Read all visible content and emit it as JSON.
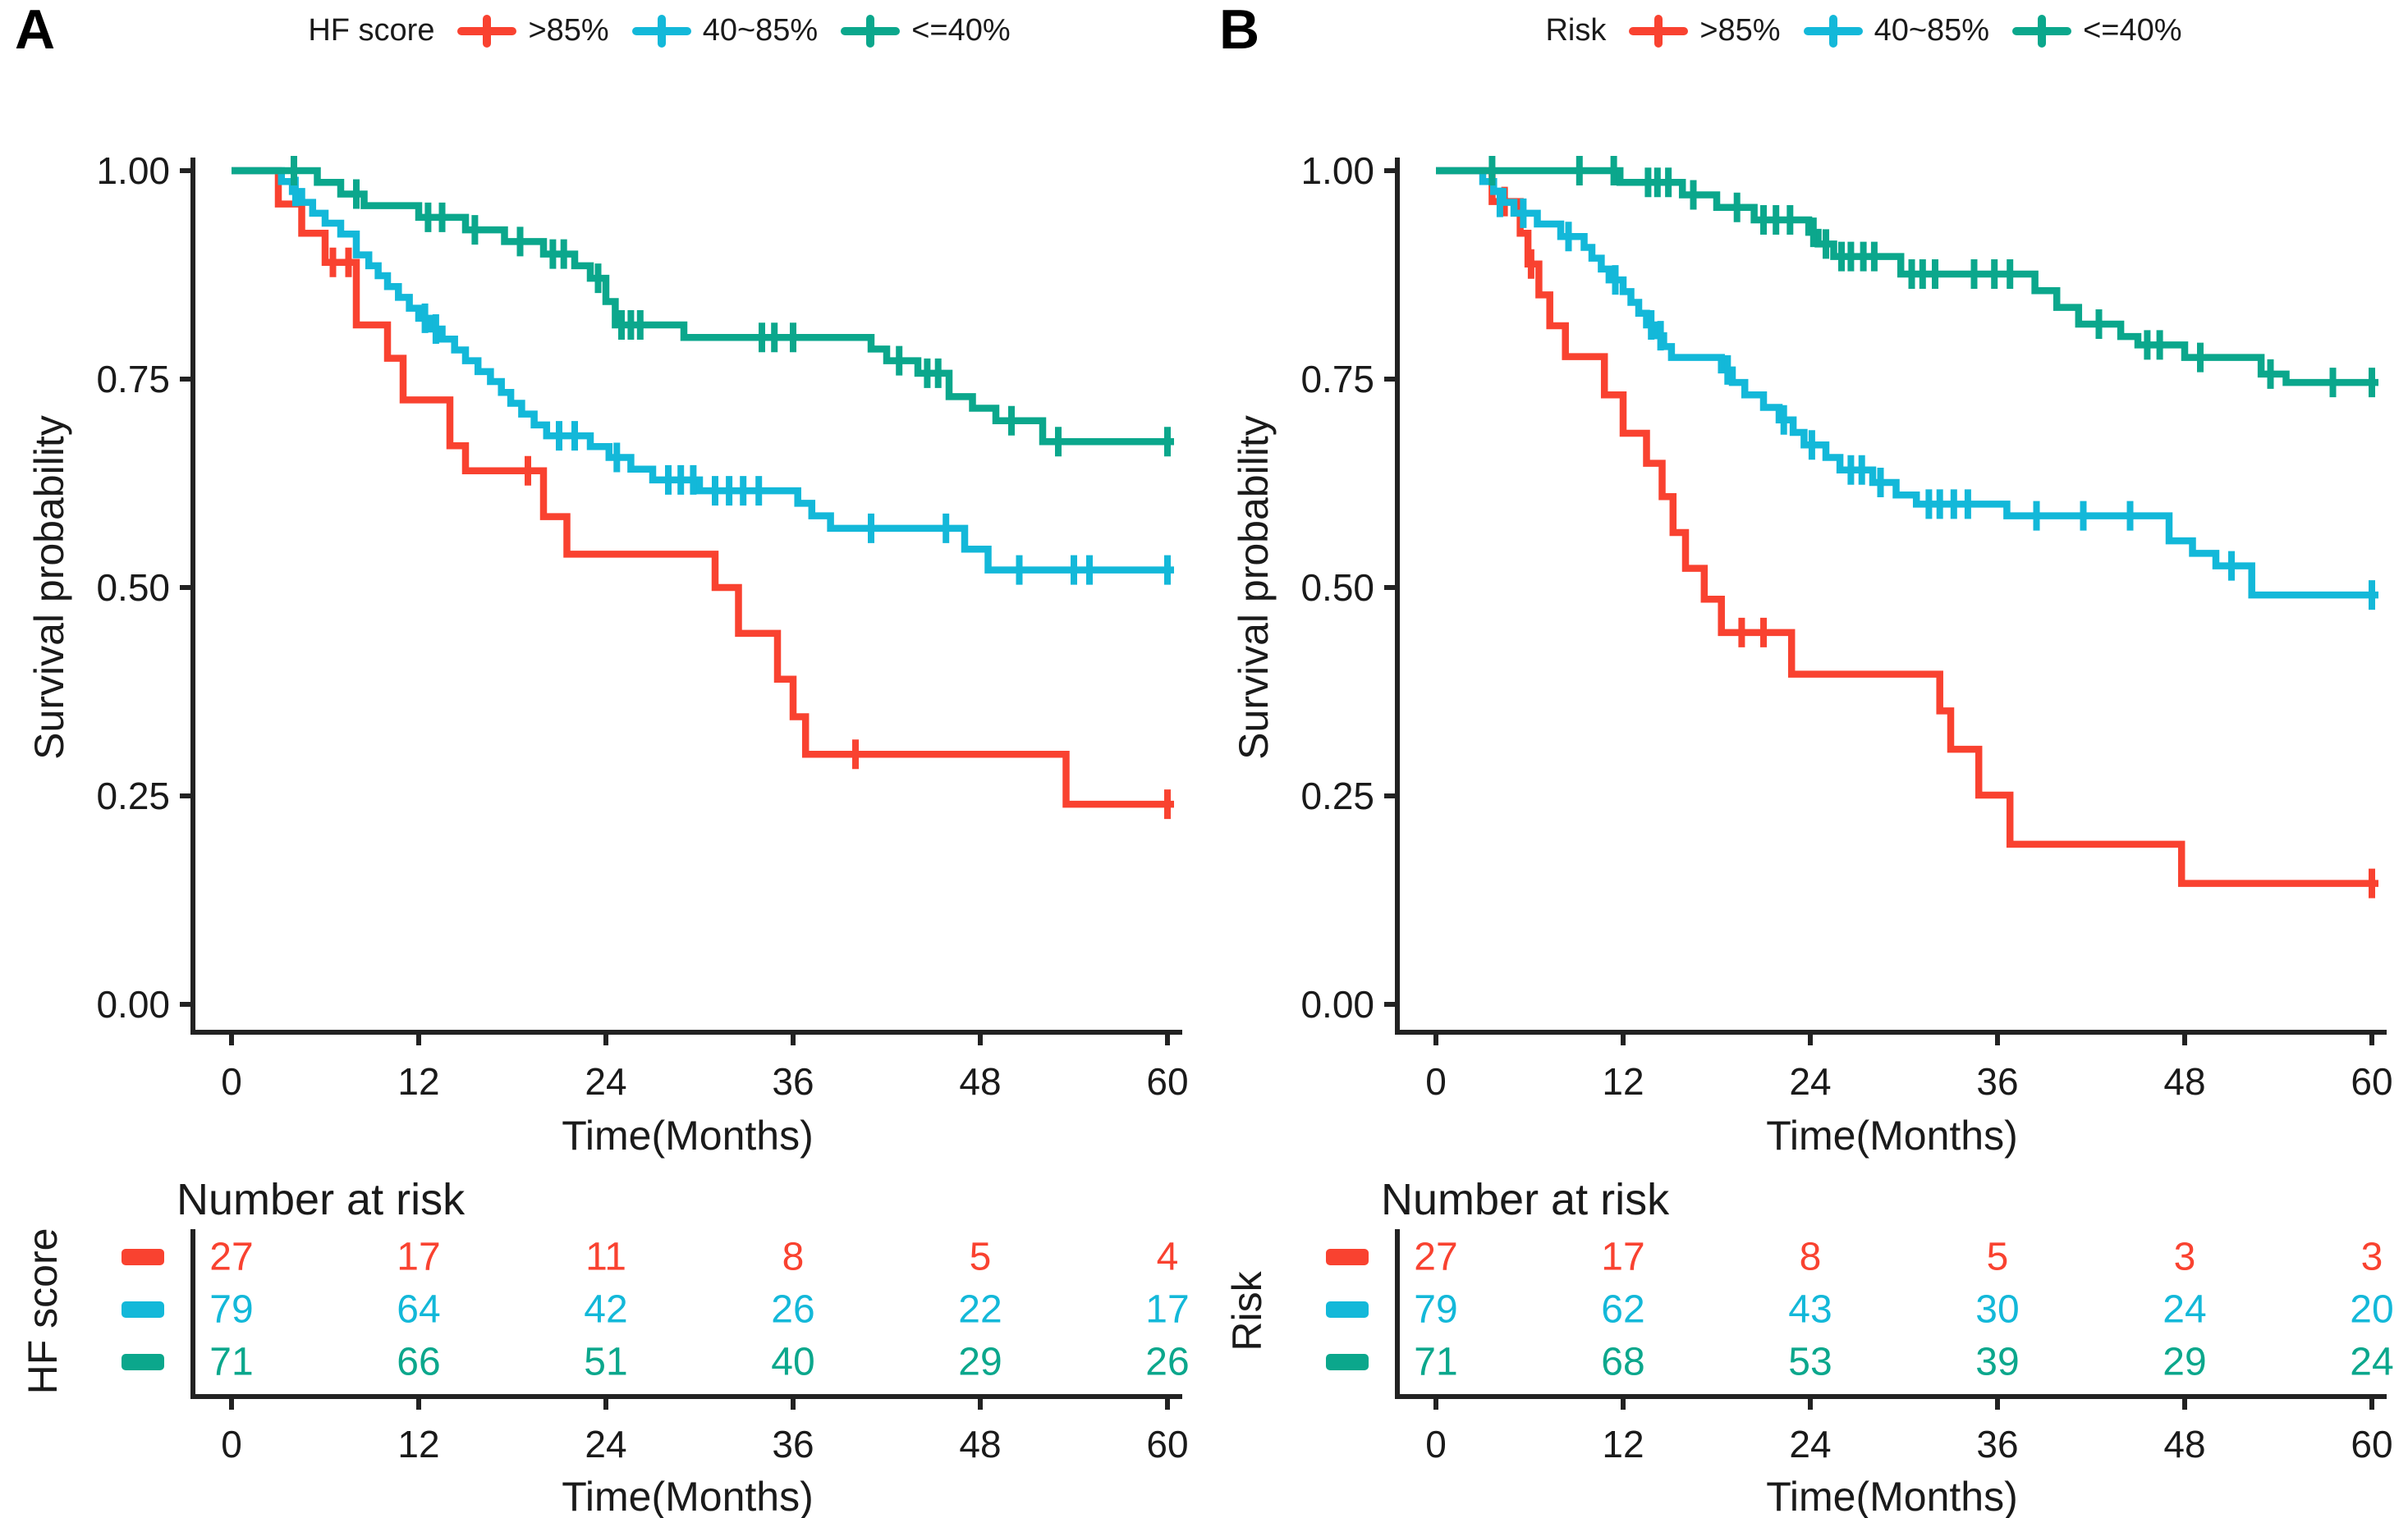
{
  "chart_data": [
    {
      "type": "line",
      "subtype": "kaplan-meier-step",
      "panel_letter": "A",
      "legend_title": "HF score",
      "xlabel": "Time(Months)",
      "ylabel": "Survival probability",
      "xlim": [
        0,
        60
      ],
      "ylim": [
        0,
        1
      ],
      "x_ticks": [
        0,
        12,
        24,
        36,
        48,
        60
      ],
      "y_tick_values": [
        1,
        0.75,
        0.5,
        0.25,
        0
      ],
      "y_tick_labels": [
        "1.00",
        "0.75",
        "0.50",
        "0.25",
        "0.00"
      ],
      "grid": false,
      "legend_position": "top",
      "risk_table": {
        "title": "Number at risk",
        "group_label": "HF score",
        "xlabel": "Time(Months)",
        "x_ticks": [
          0,
          12,
          24,
          36,
          48,
          60
        ]
      },
      "series": [
        {
          "name": ">85%",
          "color": "#f94230",
          "at_risk": [
            27,
            17,
            11,
            8,
            5,
            4
          ],
          "steps": [
            [
              3,
              0.96
            ],
            [
              4.5,
              0.925
            ],
            [
              6,
              0.89
            ],
            [
              8,
              0.815
            ],
            [
              10,
              0.775
            ],
            [
              11,
              0.725
            ],
            [
              14,
              0.67
            ],
            [
              15,
              0.64
            ],
            [
              20,
              0.585
            ],
            [
              21.5,
              0.54
            ],
            [
              31,
              0.5
            ],
            [
              32.5,
              0.445
            ],
            [
              35,
              0.39
            ],
            [
              36,
              0.345
            ],
            [
              36.8,
              0.3
            ],
            [
              53.5,
              0.24
            ]
          ],
          "censors": [
            [
              6.5,
              0.89
            ],
            [
              7.5,
              0.89
            ],
            [
              19,
              0.64
            ],
            [
              40,
              0.3
            ],
            [
              60,
              0.24
            ]
          ]
        },
        {
          "name": "40~85%",
          "color": "#13b8d9",
          "at_risk": [
            79,
            64,
            42,
            26,
            22,
            17
          ],
          "steps": [
            [
              3.2,
              0.987
            ],
            [
              3.9,
              0.975
            ],
            [
              4.5,
              0.962
            ],
            [
              5.2,
              0.949
            ],
            [
              6,
              0.937
            ],
            [
              7,
              0.924
            ],
            [
              8,
              0.899
            ],
            [
              8.8,
              0.886
            ],
            [
              9.4,
              0.874
            ],
            [
              10,
              0.861
            ],
            [
              10.7,
              0.848
            ],
            [
              11.4,
              0.835
            ],
            [
              12,
              0.823
            ],
            [
              12.7,
              0.81
            ],
            [
              13.5,
              0.798
            ],
            [
              14.3,
              0.785
            ],
            [
              15,
              0.772
            ],
            [
              15.8,
              0.759
            ],
            [
              16.6,
              0.747
            ],
            [
              17.3,
              0.734
            ],
            [
              17.9,
              0.721
            ],
            [
              18.6,
              0.708
            ],
            [
              19.4,
              0.695
            ],
            [
              20.2,
              0.682
            ],
            [
              23,
              0.669
            ],
            [
              24.2,
              0.656
            ],
            [
              25.6,
              0.642
            ],
            [
              27,
              0.629
            ],
            [
              30,
              0.616
            ],
            [
              36.3,
              0.601
            ],
            [
              37.2,
              0.586
            ],
            [
              38.4,
              0.571
            ],
            [
              47,
              0.546
            ],
            [
              48.5,
              0.521
            ]
          ],
          "censors": [
            [
              4.1,
              0.975
            ],
            [
              12.4,
              0.823
            ],
            [
              13.1,
              0.81
            ],
            [
              21,
              0.682
            ],
            [
              22,
              0.682
            ],
            [
              24.7,
              0.656
            ],
            [
              28,
              0.629
            ],
            [
              28.8,
              0.629
            ],
            [
              29.6,
              0.629
            ],
            [
              31,
              0.616
            ],
            [
              31.9,
              0.616
            ],
            [
              32.8,
              0.616
            ],
            [
              33.8,
              0.616
            ],
            [
              41,
              0.571
            ],
            [
              45.8,
              0.571
            ],
            [
              50.5,
              0.521
            ],
            [
              54,
              0.521
            ],
            [
              55,
              0.521
            ],
            [
              60,
              0.521
            ]
          ]
        },
        {
          "name": "<=40%",
          "color": "#0ba78c",
          "at_risk": [
            71,
            66,
            51,
            40,
            29,
            26
          ],
          "steps": [
            [
              5.5,
              0.986
            ],
            [
              7,
              0.972
            ],
            [
              8.5,
              0.958
            ],
            [
              12,
              0.944
            ],
            [
              15,
              0.929
            ],
            [
              17.5,
              0.915
            ],
            [
              20,
              0.9
            ],
            [
              22,
              0.886
            ],
            [
              23,
              0.871
            ],
            [
              24,
              0.843
            ],
            [
              24.6,
              0.815
            ],
            [
              29,
              0.8
            ],
            [
              41,
              0.786
            ],
            [
              42,
              0.772
            ],
            [
              44,
              0.757
            ],
            [
              46,
              0.729
            ],
            [
              47.5,
              0.715
            ],
            [
              49,
              0.7
            ],
            [
              52,
              0.675
            ]
          ],
          "censors": [
            [
              4,
              1
            ],
            [
              8,
              0.972
            ],
            [
              12.6,
              0.944
            ],
            [
              13.5,
              0.944
            ],
            [
              15.6,
              0.929
            ],
            [
              18.5,
              0.915
            ],
            [
              20.6,
              0.9
            ],
            [
              21.3,
              0.9
            ],
            [
              23.5,
              0.871
            ],
            [
              25,
              0.815
            ],
            [
              25.6,
              0.815
            ],
            [
              26.2,
              0.815
            ],
            [
              34,
              0.8
            ],
            [
              34.8,
              0.8
            ],
            [
              36,
              0.8
            ],
            [
              42.8,
              0.772
            ],
            [
              44.6,
              0.757
            ],
            [
              45.3,
              0.757
            ],
            [
              50,
              0.7
            ],
            [
              53,
              0.675
            ],
            [
              60,
              0.675
            ]
          ]
        }
      ]
    },
    {
      "type": "line",
      "subtype": "kaplan-meier-step",
      "panel_letter": "B",
      "legend_title": "Risk",
      "xlabel": "Time(Months)",
      "ylabel": "Survival probability",
      "xlim": [
        0,
        60
      ],
      "ylim": [
        0,
        1
      ],
      "x_ticks": [
        0,
        12,
        24,
        36,
        48,
        60
      ],
      "y_tick_values": [
        1,
        0.75,
        0.5,
        0.25,
        0
      ],
      "y_tick_labels": [
        "1.00",
        "0.75",
        "0.50",
        "0.25",
        "0.00"
      ],
      "grid": false,
      "legend_position": "top",
      "risk_table": {
        "title": "Number at risk",
        "group_label": "Risk",
        "xlabel": "Time(Months)",
        "x_ticks": [
          0,
          12,
          24,
          36,
          48,
          60
        ]
      },
      "series": [
        {
          "name": ">85%",
          "color": "#f94230",
          "at_risk": [
            27,
            17,
            8,
            5,
            3,
            3
          ],
          "steps": [
            [
              3.6,
              0.963
            ],
            [
              5.4,
              0.925
            ],
            [
              5.9,
              0.888
            ],
            [
              6.6,
              0.851
            ],
            [
              7.3,
              0.814
            ],
            [
              8.3,
              0.777
            ],
            [
              10.8,
              0.731
            ],
            [
              12,
              0.685
            ],
            [
              13.5,
              0.649
            ],
            [
              14.5,
              0.609
            ],
            [
              15.2,
              0.566
            ],
            [
              16,
              0.523
            ],
            [
              17.2,
              0.486
            ],
            [
              18.3,
              0.446
            ],
            [
              22.8,
              0.396
            ],
            [
              32.3,
              0.352
            ],
            [
              33,
              0.306
            ],
            [
              34.8,
              0.251
            ],
            [
              36.8,
              0.192
            ],
            [
              47.8,
              0.145
            ]
          ],
          "censors": [
            [
              4.4,
              0.963
            ],
            [
              6.1,
              0.888
            ],
            [
              19.6,
              0.446
            ],
            [
              21,
              0.446
            ],
            [
              60,
              0.145
            ]
          ]
        },
        {
          "name": "40~85%",
          "color": "#13b8d9",
          "at_risk": [
            79,
            62,
            43,
            30,
            24,
            20
          ],
          "steps": [
            [
              3,
              0.987
            ],
            [
              3.7,
              0.975
            ],
            [
              4.3,
              0.962
            ],
            [
              5,
              0.949
            ],
            [
              6.5,
              0.936
            ],
            [
              8,
              0.921
            ],
            [
              9.5,
              0.908
            ],
            [
              10,
              0.895
            ],
            [
              10.6,
              0.882
            ],
            [
              11.1,
              0.869
            ],
            [
              12,
              0.855
            ],
            [
              12.5,
              0.842
            ],
            [
              13,
              0.829
            ],
            [
              13.5,
              0.815
            ],
            [
              14.1,
              0.802
            ],
            [
              14.6,
              0.789
            ],
            [
              15.1,
              0.776
            ],
            [
              18.3,
              0.761
            ],
            [
              19,
              0.746
            ],
            [
              19.8,
              0.731
            ],
            [
              21,
              0.716
            ],
            [
              22,
              0.701
            ],
            [
              22.9,
              0.686
            ],
            [
              23.6,
              0.671
            ],
            [
              25,
              0.656
            ],
            [
              25.9,
              0.641
            ],
            [
              28,
              0.626
            ],
            [
              29.5,
              0.611
            ],
            [
              30.8,
              0.6
            ],
            [
              36.6,
              0.586
            ],
            [
              47,
              0.556
            ],
            [
              48.5,
              0.541
            ],
            [
              50,
              0.526
            ],
            [
              52.3,
              0.491
            ]
          ],
          "censors": [
            [
              4.1,
              0.962
            ],
            [
              5.6,
              0.949
            ],
            [
              8.5,
              0.921
            ],
            [
              11.5,
              0.869
            ],
            [
              13.8,
              0.815
            ],
            [
              14.4,
              0.802
            ],
            [
              18.7,
              0.761
            ],
            [
              22.3,
              0.701
            ],
            [
              24.1,
              0.671
            ],
            [
              26.6,
              0.641
            ],
            [
              27.3,
              0.641
            ],
            [
              28.5,
              0.626
            ],
            [
              31.6,
              0.6
            ],
            [
              32.3,
              0.6
            ],
            [
              33.2,
              0.6
            ],
            [
              34.1,
              0.6
            ],
            [
              38.5,
              0.586
            ],
            [
              41.5,
              0.586
            ],
            [
              44.5,
              0.586
            ],
            [
              51,
              0.526
            ],
            [
              60,
              0.491
            ]
          ]
        },
        {
          "name": "<=40%",
          "color": "#0ba78c",
          "at_risk": [
            71,
            68,
            53,
            39,
            29,
            24
          ],
          "steps": [
            [
              11.8,
              0.986
            ],
            [
              15.8,
              0.971
            ],
            [
              18,
              0.956
            ],
            [
              20.4,
              0.941
            ],
            [
              23.9,
              0.926
            ],
            [
              24.5,
              0.912
            ],
            [
              25.5,
              0.897
            ],
            [
              29.8,
              0.876
            ],
            [
              38.4,
              0.856
            ],
            [
              39.8,
              0.836
            ],
            [
              41.2,
              0.816
            ],
            [
              43.9,
              0.801
            ],
            [
              45,
              0.791
            ],
            [
              48,
              0.776
            ],
            [
              52.9,
              0.756
            ],
            [
              54.5,
              0.746
            ]
          ],
          "censors": [
            [
              3.6,
              1
            ],
            [
              9.2,
              1
            ],
            [
              11.4,
              1
            ],
            [
              13.6,
              0.986
            ],
            [
              14.2,
              0.986
            ],
            [
              14.9,
              0.986
            ],
            [
              16.5,
              0.971
            ],
            [
              19.3,
              0.956
            ],
            [
              21,
              0.941
            ],
            [
              21.8,
              0.941
            ],
            [
              22.7,
              0.941
            ],
            [
              24.2,
              0.926
            ],
            [
              25,
              0.912
            ],
            [
              26,
              0.897
            ],
            [
              26.6,
              0.897
            ],
            [
              27.4,
              0.897
            ],
            [
              28.1,
              0.897
            ],
            [
              30.5,
              0.876
            ],
            [
              31.2,
              0.876
            ],
            [
              32,
              0.876
            ],
            [
              34.5,
              0.876
            ],
            [
              35.8,
              0.876
            ],
            [
              36.8,
              0.876
            ],
            [
              42.5,
              0.816
            ],
            [
              45.6,
              0.791
            ],
            [
              46.4,
              0.791
            ],
            [
              49,
              0.776
            ],
            [
              53.5,
              0.756
            ],
            [
              57.5,
              0.746
            ],
            [
              60,
              0.746
            ]
          ]
        }
      ]
    }
  ]
}
